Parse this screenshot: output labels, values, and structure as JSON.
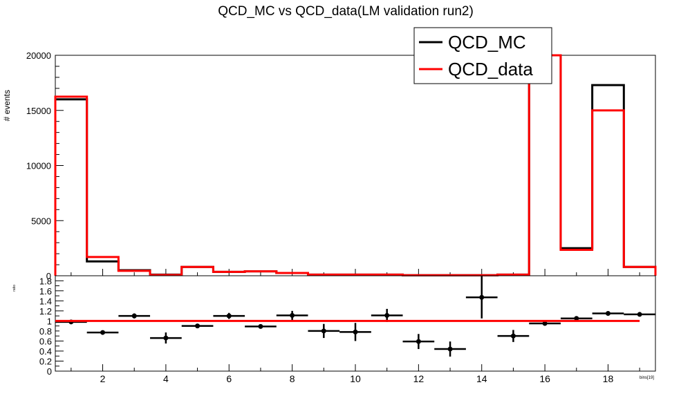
{
  "chart_data": [
    {
      "type": "line",
      "title": "QCD_MC vs QCD_data(LM validation run2)",
      "ylabel": "# events",
      "xlim": [
        0.5,
        19.5
      ],
      "ylim": [
        0,
        20000
      ],
      "yticks": [
        0,
        5000,
        10000,
        15000,
        20000
      ],
      "legend": "top-right",
      "bins": [
        1,
        2,
        3,
        4,
        5,
        6,
        7,
        8,
        9,
        10,
        11,
        12,
        13,
        14,
        15,
        16,
        17,
        18,
        19
      ],
      "series": [
        {
          "name": "QCD_MC",
          "color": "#000000",
          "values": [
            16000,
            1300,
            500,
            100,
            800,
            350,
            400,
            250,
            100,
            100,
            100,
            50,
            50,
            50,
            100,
            20300,
            2500,
            17300,
            800
          ]
        },
        {
          "name": "QCD_data",
          "color": "#ff0000",
          "values": [
            16250,
            1700,
            450,
            70,
            800,
            350,
            400,
            250,
            100,
            100,
            100,
            50,
            50,
            50,
            100,
            20300,
            2350,
            15000,
            800
          ]
        }
      ]
    },
    {
      "type": "scatter",
      "ylabel": "ratio",
      "xlabel": "bins[19]",
      "xlim": [
        0.5,
        19.5
      ],
      "ylim": [
        0,
        1.9
      ],
      "yticks": [
        0,
        0.2,
        0.4,
        0.6,
        0.8,
        1,
        1.2,
        1.4,
        1.6,
        1.8
      ],
      "xticks": [
        2,
        4,
        6,
        8,
        10,
        12,
        14,
        16,
        18
      ],
      "reference_line": {
        "value": 1,
        "x_from": 0.5,
        "x_to": 19,
        "color": "#ff0000"
      },
      "points": [
        {
          "x": 1,
          "y": 0.98,
          "err": 0.03
        },
        {
          "x": 2,
          "y": 0.77,
          "err": 0.03
        },
        {
          "x": 3,
          "y": 1.1,
          "err": 0.05
        },
        {
          "x": 4,
          "y": 0.66,
          "err": 0.11
        },
        {
          "x": 5,
          "y": 0.9,
          "err": 0.03
        },
        {
          "x": 6,
          "y": 1.1,
          "err": 0.06
        },
        {
          "x": 7,
          "y": 0.89,
          "err": 0.04
        },
        {
          "x": 8,
          "y": 1.11,
          "err": 0.09
        },
        {
          "x": 9,
          "y": 0.8,
          "err": 0.14
        },
        {
          "x": 10,
          "y": 0.78,
          "err": 0.18
        },
        {
          "x": 11,
          "y": 1.11,
          "err": 0.13
        },
        {
          "x": 12,
          "y": 0.59,
          "err": 0.15
        },
        {
          "x": 13,
          "y": 0.44,
          "err": 0.15
        },
        {
          "x": 14,
          "y": 1.47,
          "err": 0.42
        },
        {
          "x": 15,
          "y": 0.7,
          "err": 0.12
        },
        {
          "x": 16,
          "y": 0.95,
          "err": 0.02
        },
        {
          "x": 17,
          "y": 1.05,
          "err": 0.02
        },
        {
          "x": 18,
          "y": 1.15,
          "err": 0.02
        },
        {
          "x": 19,
          "y": 1.13,
          "err": 0.02
        }
      ]
    }
  ],
  "labels": {
    "title": "QCD_MC vs QCD_data(LM validation run2)",
    "ylabel_top": "# events",
    "ylabel_bottom": "ratio",
    "xlabel": "bins[19]",
    "legend_mc": "QCD_MC",
    "legend_data": "QCD_data"
  }
}
